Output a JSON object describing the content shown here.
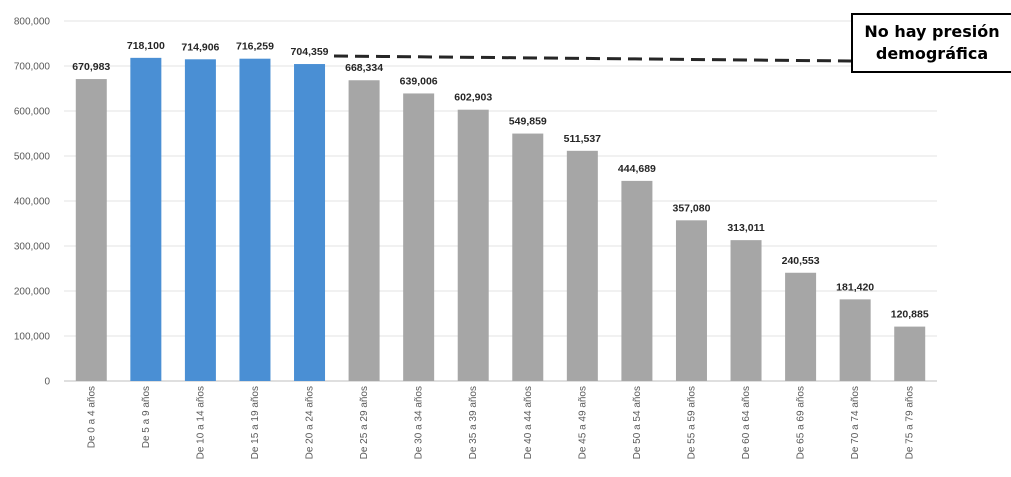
{
  "chart_data": {
    "type": "bar",
    "categories": [
      "De 0 a 4 años",
      "De 5 a 9 años",
      "De 10 a 14 años",
      "De 15 a 19 años",
      "De 20 a 24 años",
      "De 25 a 29 años",
      "De 30 a 34 años",
      "De 35 a 39 años",
      "De 40 a 44 años",
      "De 45 a 49 años",
      "De 50 a 54 años",
      "De 55 a 59 años",
      "De 60 a 64 años",
      "De 65 a 69 años",
      "De 70 a 74 años",
      "De 75 a 79 años"
    ],
    "values": [
      670983,
      718100,
      714906,
      716259,
      704359,
      668334,
      639006,
      602903,
      549859,
      511537,
      444689,
      357080,
      313011,
      240553,
      181420,
      120885
    ],
    "data_labels": [
      "670,983",
      "718,100",
      "714,906",
      "716,259",
      "704,359",
      "668,334",
      "639,006",
      "602,903",
      "549,859",
      "511,537",
      "444,689",
      "357,080",
      "313,011",
      "240,553",
      "181,420",
      "120,885"
    ],
    "highlighted": [
      false,
      true,
      true,
      true,
      true,
      false,
      false,
      false,
      false,
      false,
      false,
      false,
      false,
      false,
      false,
      false
    ],
    "title": "",
    "xlabel": "",
    "ylabel": "",
    "ylim": [
      0,
      800000
    ],
    "y_ticks": [
      0,
      100000,
      200000,
      300000,
      400000,
      500000,
      600000,
      700000,
      800000
    ],
    "y_tick_labels": [
      "0",
      "100,000",
      "200,000",
      "300,000",
      "400,000",
      "500,000",
      "600,000",
      "700,000",
      "800,000"
    ],
    "grid": true,
    "legend": "none",
    "colors": {
      "default_bar": "#a6a6a6",
      "highlight_bar": "#4a8fd4",
      "grid": "#e3e3e3",
      "axis": "#bfbfbf",
      "reference_line": "#262626"
    },
    "reference_line": {
      "style": "dashed"
    },
    "annotation": {
      "line1": "No hay presión",
      "line2": "demográfica"
    }
  }
}
